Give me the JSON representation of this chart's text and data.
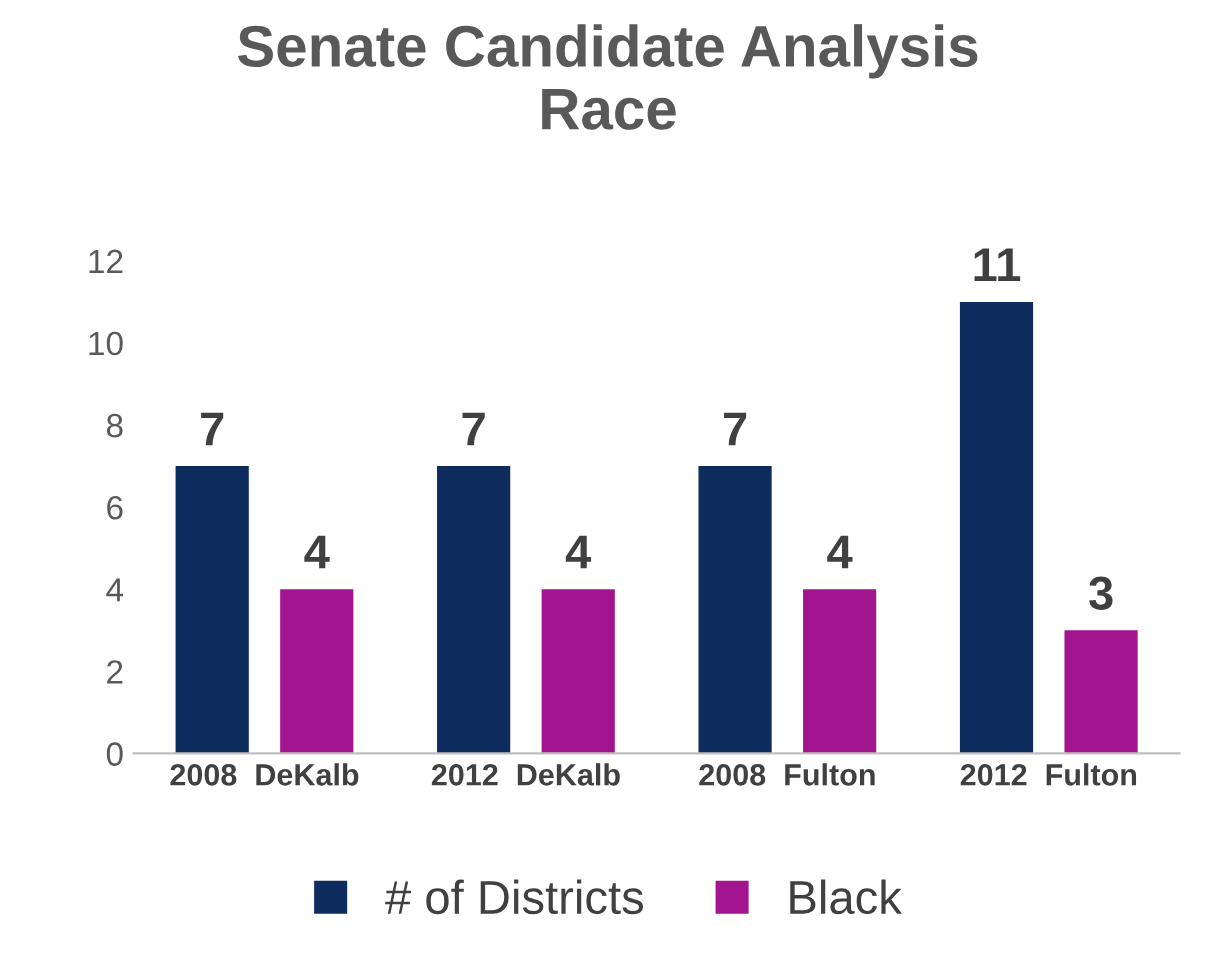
{
  "chart_data": {
    "type": "bar",
    "title": "Senate Candidate Analysis\nRace",
    "categories": [
      "2008  DeKalb",
      "2012  DeKalb",
      "2008  Fulton",
      "2012  Fulton"
    ],
    "series": [
      {
        "name": "# of Districts",
        "color": "#0e2c5e",
        "values": [
          7,
          7,
          7,
          11
        ]
      },
      {
        "name": "Black",
        "color": "#a3158f",
        "values": [
          4,
          4,
          4,
          3
        ]
      }
    ],
    "ylim": [
      0,
      12
    ],
    "yticks": [
      0,
      2,
      4,
      6,
      8,
      10,
      12
    ],
    "grid": false,
    "legend": "bottom",
    "data_labels": true
  }
}
